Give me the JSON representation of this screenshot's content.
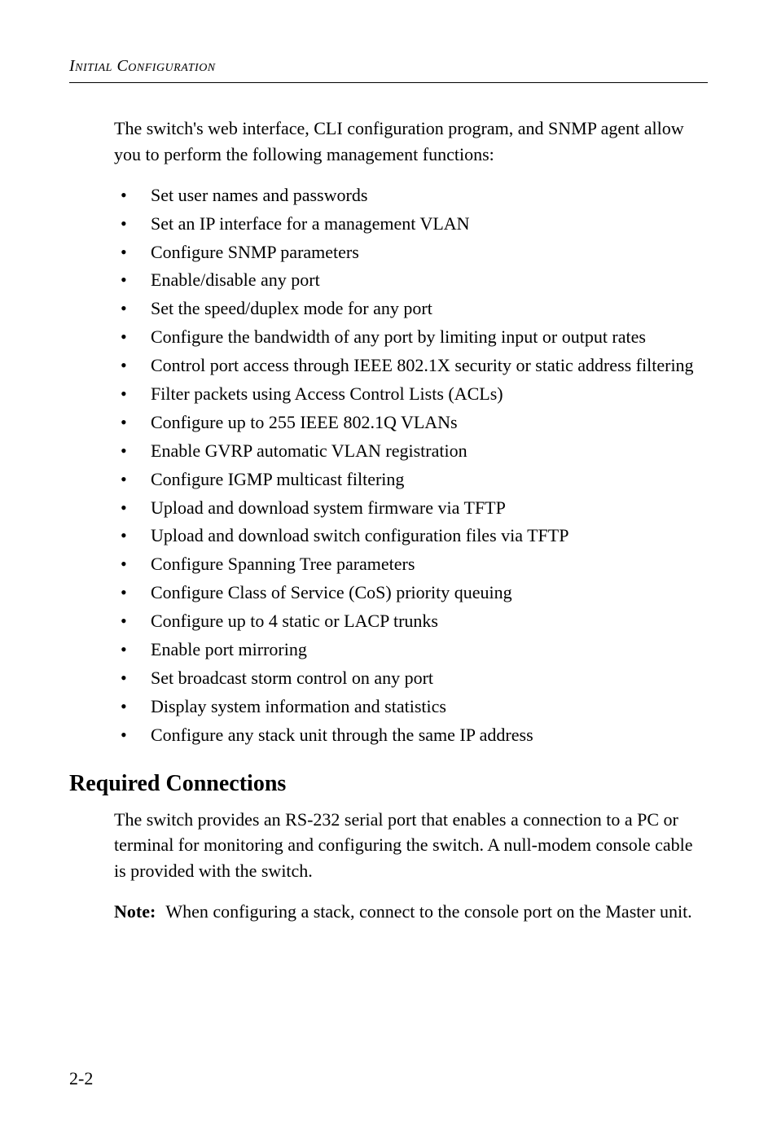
{
  "header": {
    "running_title": "Initial Configuration"
  },
  "intro": {
    "text": "The switch's web interface, CLI configuration program, and SNMP agent allow you to perform the following management functions:"
  },
  "bullets": [
    "Set user names and passwords",
    "Set an IP interface for a management VLAN",
    "Configure SNMP parameters",
    "Enable/disable any port",
    "Set the speed/duplex mode for any port",
    "Configure the bandwidth of any port by limiting input or output rates",
    "Control port access through IEEE 802.1X security or static address filtering",
    "Filter packets using Access Control Lists (ACLs)",
    "Configure up to 255 IEEE 802.1Q VLANs",
    "Enable GVRP automatic VLAN registration",
    "Configure IGMP multicast filtering",
    "Upload and download system firmware via TFTP",
    "Upload and download switch configuration files via TFTP",
    "Configure Spanning Tree parameters",
    "Configure Class of Service (CoS) priority queuing",
    "Configure up to 4 static or LACP trunks",
    "Enable port mirroring",
    "Set broadcast storm control on any port",
    "Display system information and statistics",
    "Configure any stack unit through the same IP address"
  ],
  "section": {
    "heading": "Required Connections",
    "body": "The switch provides an RS-232 serial port that enables a connection to a PC or terminal for monitoring and configuring the switch. A null-modem console cable is provided with the switch."
  },
  "note": {
    "label": "Note:",
    "text": "When configuring a stack, connect to the console port on the Master unit."
  },
  "footer": {
    "page_number": "2-2"
  }
}
